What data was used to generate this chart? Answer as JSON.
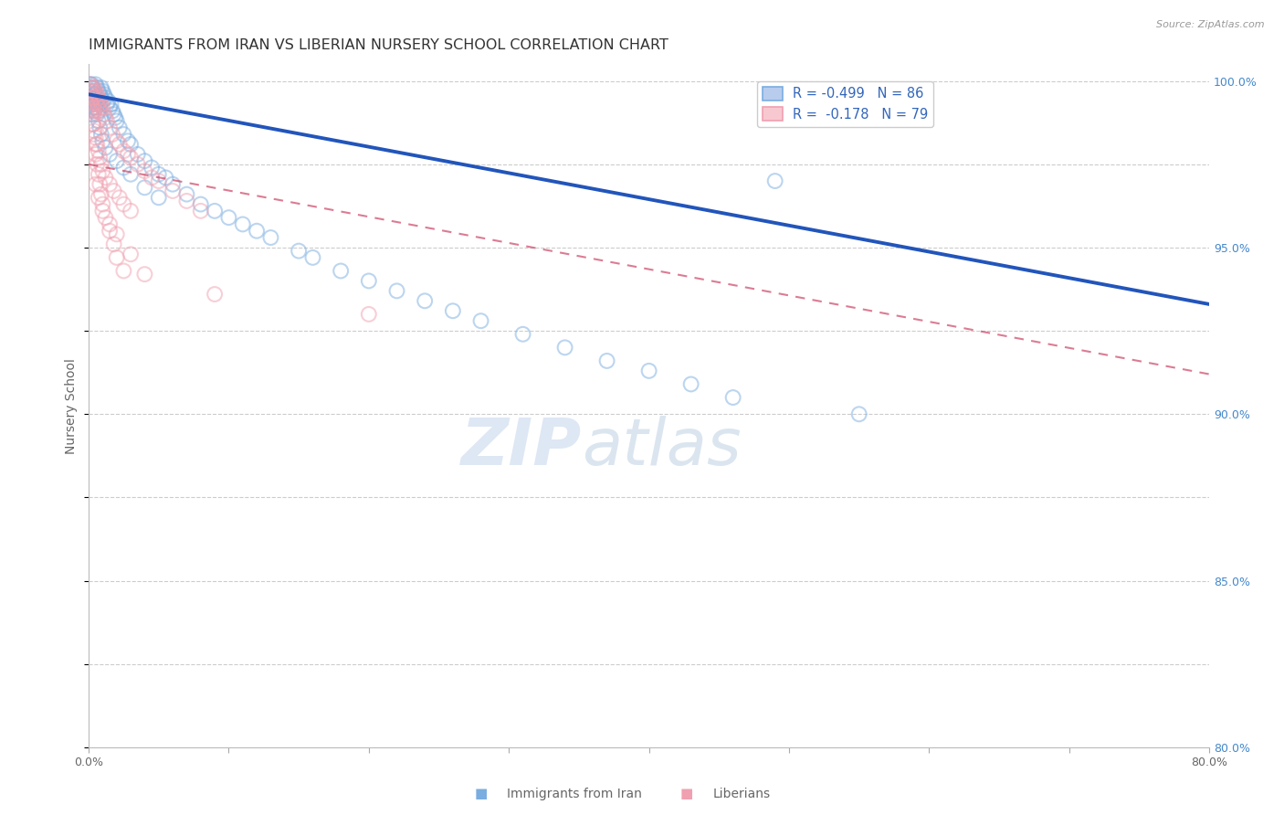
{
  "title": "IMMIGRANTS FROM IRAN VS LIBERIAN NURSERY SCHOOL CORRELATION CHART",
  "source": "Source: ZipAtlas.com",
  "ylabel": "Nursery School",
  "xlabel_label1": "Immigrants from Iran",
  "xlabel_label2": "Liberians",
  "legend_line1": "R = -0.499   N = 86",
  "legend_line2": "R =  -0.178   N = 79",
  "x_min": 0.0,
  "x_max": 0.8,
  "y_min": 0.8,
  "y_max": 1.005,
  "x_ticks": [
    0.0,
    0.1,
    0.2,
    0.3,
    0.4,
    0.5,
    0.6,
    0.7,
    0.8
  ],
  "x_tick_labels": [
    "0.0%",
    "",
    "",
    "",
    "",
    "",
    "",
    "",
    "80.0%"
  ],
  "y_ticks": [
    0.8,
    0.85,
    0.9,
    0.95,
    1.0
  ],
  "y_tick_labels": [
    "80.0%",
    "85.0%",
    "90.0%",
    "95.0%",
    "100.0%"
  ],
  "blue_scatter_x": [
    0.001,
    0.001,
    0.001,
    0.002,
    0.002,
    0.002,
    0.002,
    0.003,
    0.003,
    0.003,
    0.004,
    0.004,
    0.004,
    0.005,
    0.005,
    0.005,
    0.006,
    0.006,
    0.007,
    0.007,
    0.007,
    0.008,
    0.008,
    0.009,
    0.009,
    0.01,
    0.01,
    0.011,
    0.012,
    0.013,
    0.014,
    0.015,
    0.016,
    0.017,
    0.018,
    0.019,
    0.02,
    0.022,
    0.025,
    0.028,
    0.03,
    0.035,
    0.04,
    0.045,
    0.05,
    0.055,
    0.06,
    0.07,
    0.08,
    0.09,
    0.1,
    0.11,
    0.12,
    0.13,
    0.15,
    0.16,
    0.18,
    0.2,
    0.22,
    0.24,
    0.26,
    0.28,
    0.31,
    0.34,
    0.37,
    0.4,
    0.43,
    0.46,
    0.49,
    0.002,
    0.003,
    0.004,
    0.005,
    0.006,
    0.007,
    0.008,
    0.009,
    0.01,
    0.012,
    0.015,
    0.02,
    0.025,
    0.03,
    0.04,
    0.05,
    0.55
  ],
  "blue_scatter_y": [
    0.999,
    0.997,
    0.994,
    0.999,
    0.996,
    0.993,
    0.99,
    0.998,
    0.995,
    0.992,
    0.997,
    0.994,
    0.991,
    0.999,
    0.996,
    0.993,
    0.998,
    0.995,
    0.997,
    0.994,
    0.991,
    0.996,
    0.993,
    0.998,
    0.995,
    0.997,
    0.994,
    0.996,
    0.995,
    0.993,
    0.994,
    0.992,
    0.993,
    0.991,
    0.99,
    0.989,
    0.988,
    0.986,
    0.984,
    0.982,
    0.981,
    0.978,
    0.976,
    0.974,
    0.972,
    0.971,
    0.969,
    0.966,
    0.963,
    0.961,
    0.959,
    0.957,
    0.955,
    0.953,
    0.949,
    0.947,
    0.943,
    0.94,
    0.937,
    0.934,
    0.931,
    0.928,
    0.924,
    0.92,
    0.916,
    0.913,
    0.909,
    0.905,
    0.97,
    0.998,
    0.996,
    0.994,
    0.992,
    0.99,
    0.988,
    0.986,
    0.984,
    0.982,
    0.98,
    0.978,
    0.976,
    0.974,
    0.972,
    0.968,
    0.965,
    0.9
  ],
  "pink_scatter_x": [
    0.001,
    0.001,
    0.001,
    0.002,
    0.002,
    0.002,
    0.003,
    0.003,
    0.003,
    0.004,
    0.004,
    0.004,
    0.005,
    0.005,
    0.006,
    0.006,
    0.007,
    0.007,
    0.008,
    0.008,
    0.009,
    0.01,
    0.011,
    0.012,
    0.013,
    0.015,
    0.017,
    0.02,
    0.022,
    0.025,
    0.028,
    0.03,
    0.035,
    0.04,
    0.045,
    0.05,
    0.06,
    0.07,
    0.08,
    0.003,
    0.004,
    0.005,
    0.006,
    0.007,
    0.008,
    0.009,
    0.01,
    0.012,
    0.015,
    0.018,
    0.022,
    0.025,
    0.03,
    0.002,
    0.002,
    0.003,
    0.003,
    0.004,
    0.005,
    0.005,
    0.006,
    0.007,
    0.008,
    0.009,
    0.01,
    0.012,
    0.015,
    0.018,
    0.02,
    0.025,
    0.005,
    0.007,
    0.01,
    0.015,
    0.02,
    0.03,
    0.04,
    0.09,
    0.2
  ],
  "pink_scatter_y": [
    0.999,
    0.997,
    0.994,
    0.998,
    0.996,
    0.993,
    0.997,
    0.995,
    0.992,
    0.998,
    0.995,
    0.991,
    0.997,
    0.994,
    0.996,
    0.993,
    0.995,
    0.992,
    0.994,
    0.991,
    0.993,
    0.992,
    0.99,
    0.989,
    0.988,
    0.986,
    0.984,
    0.982,
    0.981,
    0.979,
    0.978,
    0.977,
    0.975,
    0.973,
    0.971,
    0.97,
    0.967,
    0.964,
    0.961,
    0.987,
    0.985,
    0.983,
    0.981,
    0.979,
    0.977,
    0.975,
    0.973,
    0.971,
    0.969,
    0.967,
    0.965,
    0.963,
    0.961,
    0.996,
    0.993,
    0.99,
    0.987,
    0.984,
    0.981,
    0.978,
    0.975,
    0.972,
    0.969,
    0.966,
    0.963,
    0.959,
    0.955,
    0.951,
    0.947,
    0.943,
    0.969,
    0.965,
    0.961,
    0.957,
    0.954,
    0.948,
    0.942,
    0.936,
    0.93
  ],
  "blue_line_x": [
    0.0,
    0.8
  ],
  "blue_line_y": [
    0.996,
    0.933
  ],
  "pink_line_x": [
    0.0,
    0.8
  ],
  "pink_line_y": [
    0.975,
    0.912
  ],
  "watermark_zip": "ZIP",
  "watermark_atlas": "atlas",
  "background_color": "#ffffff",
  "blue_color": "#7aade0",
  "pink_color": "#f0a0b0",
  "blue_line_color": "#2255bb",
  "pink_line_color": "#cc4466",
  "grid_color": "#cccccc",
  "title_color": "#333333",
  "axis_label_color": "#666666",
  "right_tick_color": "#4488cc",
  "marker_size": 130,
  "marker_alpha": 0.5,
  "title_fontsize": 11.5,
  "axis_label_fontsize": 10,
  "tick_fontsize": 9,
  "legend_fontsize": 10.5
}
